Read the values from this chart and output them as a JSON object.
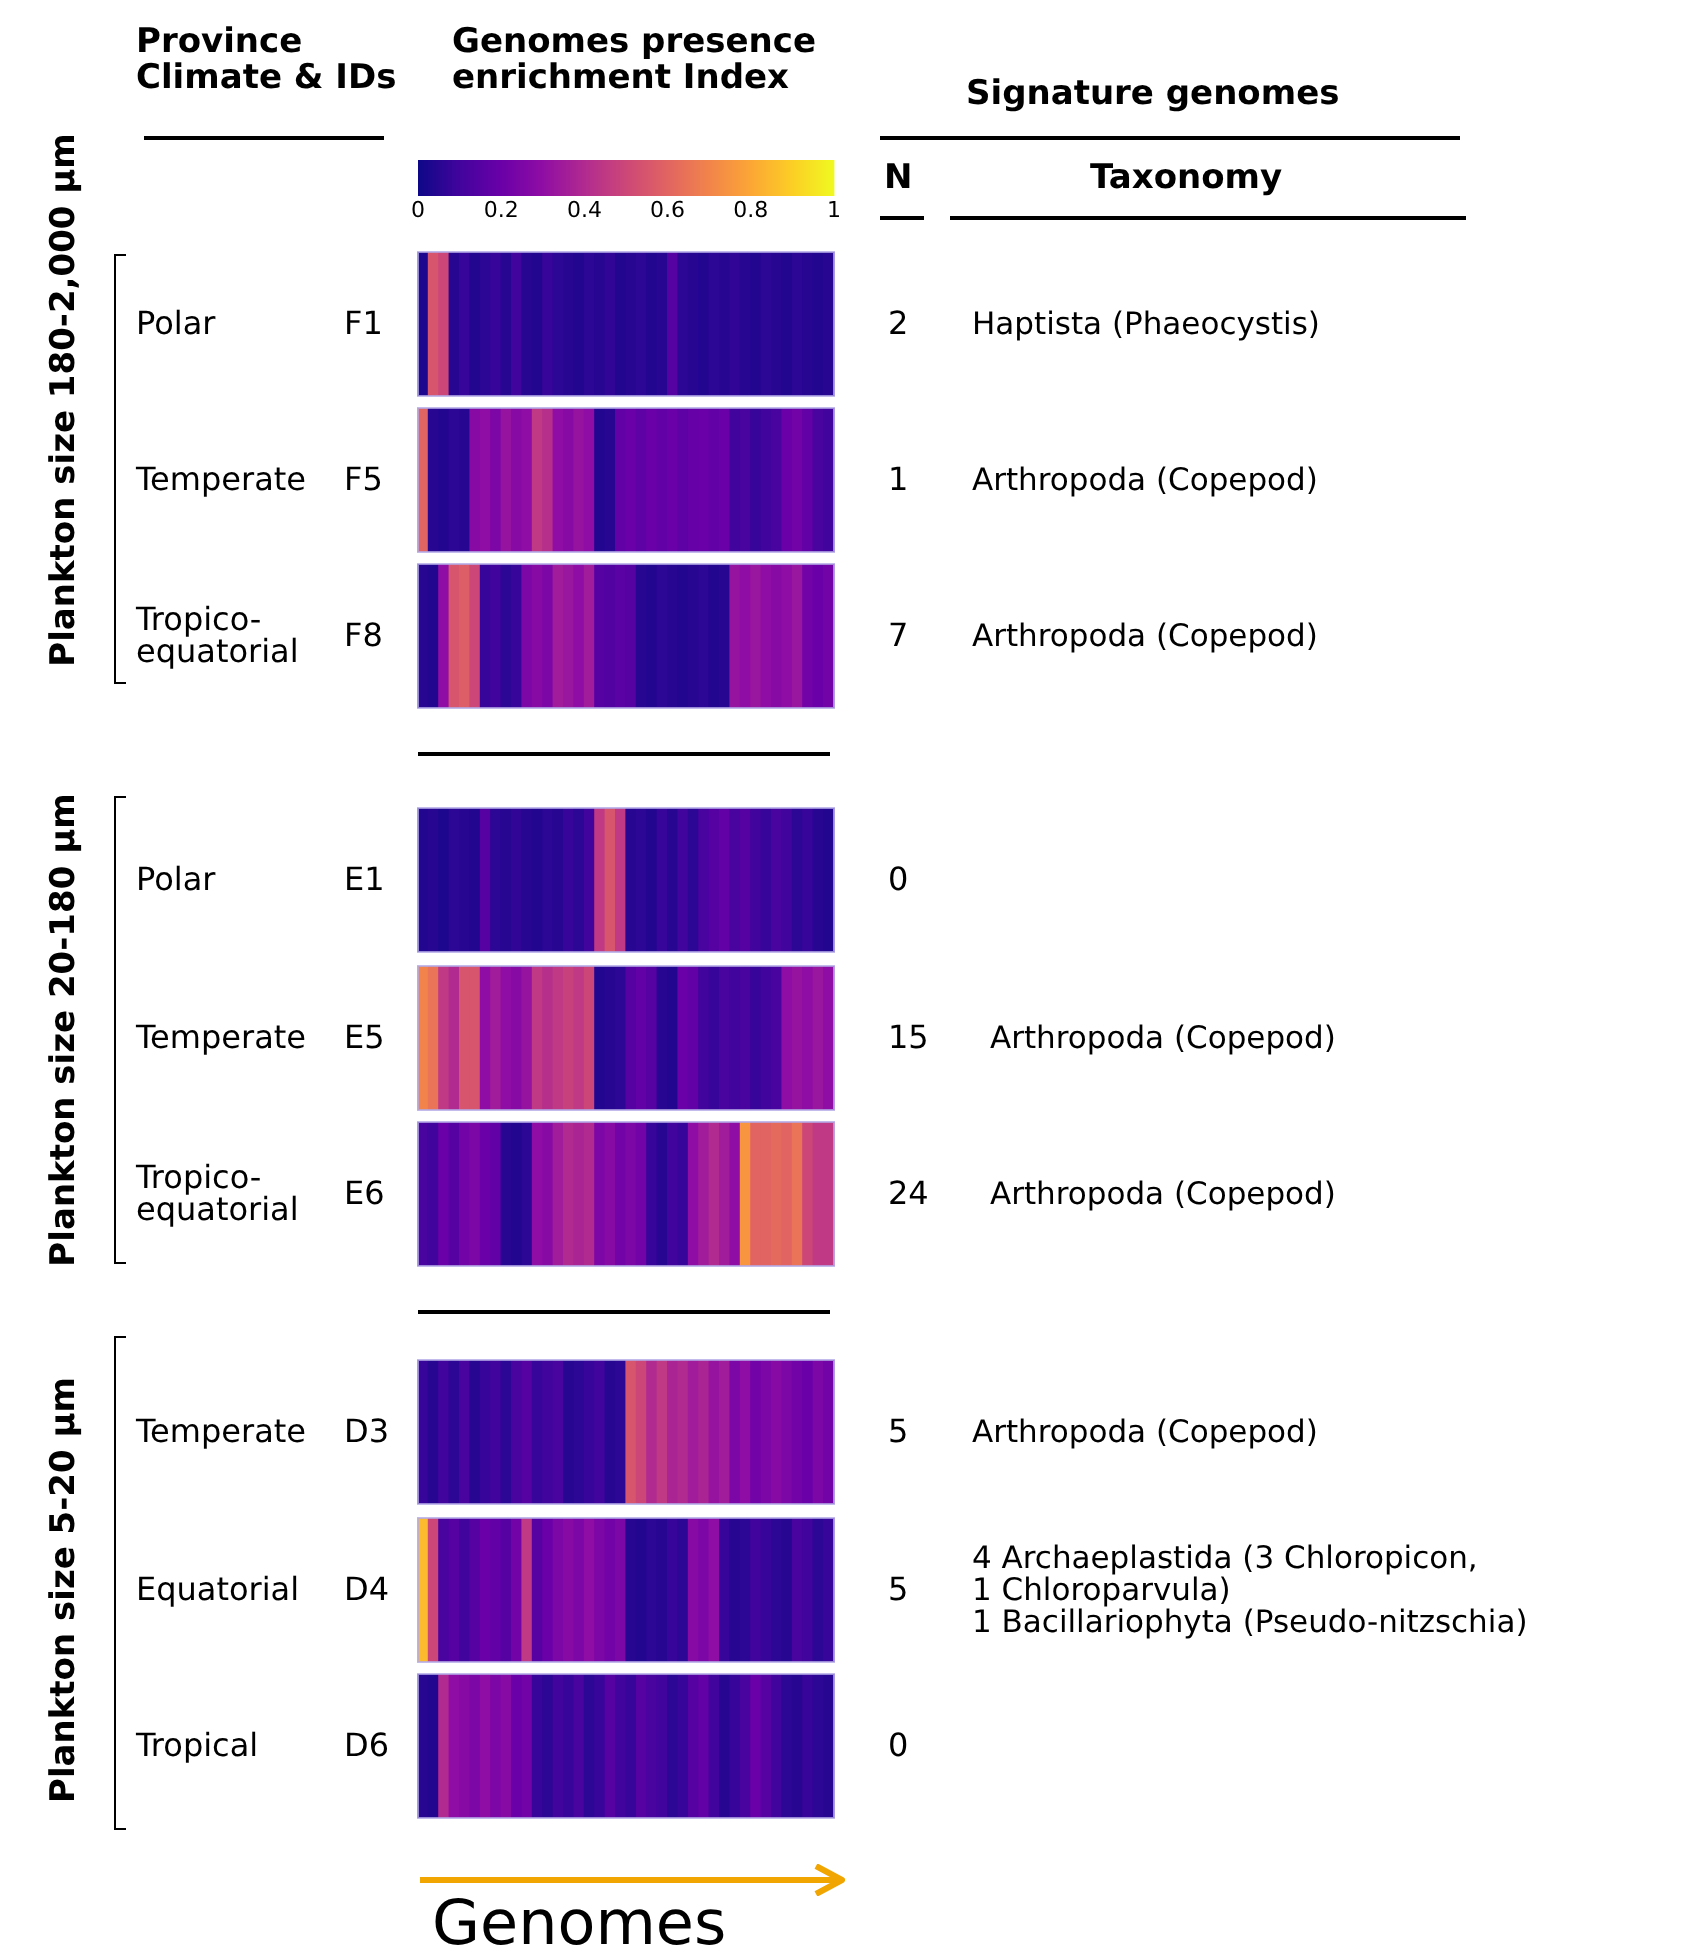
{
  "chart_data": {
    "type": "heatmap",
    "categories": [
      null,
      null,
      null,
      null,
      null,
      null,
      null,
      null,
      null,
      null,
      null,
      null,
      null,
      null,
      null,
      null,
      null,
      null,
      null,
      null,
      null,
      null,
      null,
      null,
      null,
      null,
      null,
      null,
      null,
      null,
      null,
      null,
      null,
      null,
      null,
      null,
      null,
      null,
      null,
      null
    ],
    "y_categories": [
      "Polar",
      "Temperate",
      "Tropico-\nequatorial",
      "Polar",
      "Temperate",
      "Tropico-\nequatorial",
      "Temperate",
      "Equatorial",
      "Tropical"
    ],
    "y2_categories": [
      "F1",
      "F5",
      "F8",
      "E1",
      "E5",
      "E6",
      "D3",
      "D4",
      "D6"
    ],
    "cells": [
      [
        0.03,
        0.55,
        0.5,
        0.05,
        0.08,
        0.04,
        0.06,
        0.08,
        0.05,
        0.1,
        0.05,
        0.04,
        0.08,
        0.06,
        0.05,
        0.04,
        0.06,
        0.05,
        0.07,
        0.04,
        0.05,
        0.06,
        0.04,
        0.05,
        0.15,
        0.06,
        0.05,
        0.04,
        0.06,
        0.05,
        0.07,
        0.05,
        0.04,
        0.06,
        0.05,
        0.04,
        0.06,
        0.05,
        0.04,
        0.05
      ],
      [
        0.6,
        0.05,
        0.04,
        0.06,
        0.05,
        0.28,
        0.3,
        0.25,
        0.32,
        0.28,
        0.3,
        0.45,
        0.42,
        0.3,
        0.28,
        0.32,
        0.3,
        0.04,
        0.05,
        0.18,
        0.2,
        0.17,
        0.2,
        0.18,
        0.2,
        0.17,
        0.19,
        0.2,
        0.18,
        0.2,
        0.1,
        0.12,
        0.08,
        0.1,
        0.12,
        0.2,
        0.22,
        0.18,
        0.12,
        0.1
      ],
      [
        0.05,
        0.04,
        0.3,
        0.55,
        0.58,
        0.5,
        0.08,
        0.1,
        0.06,
        0.08,
        0.25,
        0.28,
        0.25,
        0.35,
        0.33,
        0.3,
        0.35,
        0.15,
        0.14,
        0.16,
        0.15,
        0.05,
        0.04,
        0.06,
        0.05,
        0.04,
        0.05,
        0.06,
        0.04,
        0.05,
        0.32,
        0.3,
        0.33,
        0.3,
        0.28,
        0.3,
        0.33,
        0.22,
        0.2,
        0.22
      ],
      [
        0.04,
        0.05,
        0.03,
        0.06,
        0.05,
        0.04,
        0.15,
        0.06,
        0.05,
        0.07,
        0.05,
        0.04,
        0.06,
        0.05,
        0.08,
        0.06,
        0.1,
        0.45,
        0.55,
        0.45,
        0.05,
        0.06,
        0.04,
        0.08,
        0.05,
        0.1,
        0.06,
        0.12,
        0.15,
        0.18,
        0.12,
        0.15,
        0.1,
        0.08,
        0.12,
        0.1,
        0.06,
        0.08,
        0.05,
        0.04
      ],
      [
        0.7,
        0.65,
        0.45,
        0.4,
        0.55,
        0.55,
        0.3,
        0.35,
        0.3,
        0.28,
        0.32,
        0.45,
        0.42,
        0.45,
        0.48,
        0.45,
        0.5,
        0.04,
        0.05,
        0.06,
        0.15,
        0.18,
        0.15,
        0.05,
        0.04,
        0.2,
        0.18,
        0.1,
        0.08,
        0.12,
        0.1,
        0.12,
        0.08,
        0.1,
        0.12,
        0.3,
        0.32,
        0.3,
        0.33,
        0.3
      ],
      [
        0.12,
        0.1,
        0.2,
        0.15,
        0.22,
        0.25,
        0.2,
        0.18,
        0.05,
        0.04,
        0.06,
        0.3,
        0.28,
        0.35,
        0.4,
        0.38,
        0.4,
        0.25,
        0.28,
        0.22,
        0.25,
        0.22,
        0.08,
        0.05,
        0.1,
        0.08,
        0.3,
        0.35,
        0.4,
        0.35,
        0.3,
        0.75,
        0.6,
        0.6,
        0.62,
        0.6,
        0.65,
        0.5,
        0.45,
        0.45
      ],
      [
        0.08,
        0.05,
        0.1,
        0.06,
        0.12,
        0.05,
        0.08,
        0.1,
        0.06,
        0.12,
        0.15,
        0.08,
        0.1,
        0.12,
        0.05,
        0.06,
        0.08,
        0.1,
        0.05,
        0.06,
        0.55,
        0.5,
        0.4,
        0.45,
        0.38,
        0.4,
        0.35,
        0.38,
        0.32,
        0.35,
        0.25,
        0.3,
        0.22,
        0.25,
        0.28,
        0.25,
        0.22,
        0.2,
        0.25,
        0.22
      ],
      [
        0.85,
        0.5,
        0.12,
        0.15,
        0.1,
        0.15,
        0.2,
        0.18,
        0.15,
        0.22,
        0.45,
        0.15,
        0.2,
        0.25,
        0.28,
        0.25,
        0.3,
        0.25,
        0.22,
        0.25,
        0.05,
        0.04,
        0.06,
        0.05,
        0.08,
        0.06,
        0.28,
        0.25,
        0.3,
        0.08,
        0.05,
        0.06,
        0.1,
        0.08,
        0.06,
        0.05,
        0.12,
        0.1,
        0.06,
        0.08
      ],
      [
        0.05,
        0.04,
        0.4,
        0.3,
        0.28,
        0.25,
        0.3,
        0.25,
        0.28,
        0.2,
        0.22,
        0.08,
        0.06,
        0.1,
        0.08,
        0.12,
        0.06,
        0.08,
        0.15,
        0.1,
        0.08,
        0.15,
        0.12,
        0.1,
        0.06,
        0.08,
        0.15,
        0.18,
        0.1,
        0.05,
        0.08,
        0.12,
        0.2,
        0.15,
        0.1,
        0.06,
        0.05,
        0.08,
        0.06,
        0.05
      ]
    ],
    "clim": [
      0,
      1
    ],
    "cticks": [
      0,
      0.2,
      0.4,
      0.6,
      0.8,
      1
    ],
    "clabel": "Genomes presence enrichment Index",
    "xlabel": "Genomes",
    "annotations": [
      "Province Climate & IDs",
      "Signature genomes",
      "N",
      "Taxonomy",
      "Plankton size 180-2,000 µm",
      "Plankton size 20-180 µm",
      "Plankton size 5-20 µm",
      "2",
      "Haptista (Phaeocystis)",
      "1",
      "Arthropoda (Copepod)",
      "7",
      "Arthropoda (Copepod)",
      "0",
      null,
      "15",
      "Arthropoda (Copepod)",
      "24",
      "Arthropoda (Copepod)",
      "5",
      "Arthropoda (Copepod)",
      "5",
      "4 Archaeplastida (3 Chloropicon,\n1 Chloroparvula)\n1 Bacillariophyta (Pseudo-nitzschia)",
      "0",
      null
    ]
  }
}
